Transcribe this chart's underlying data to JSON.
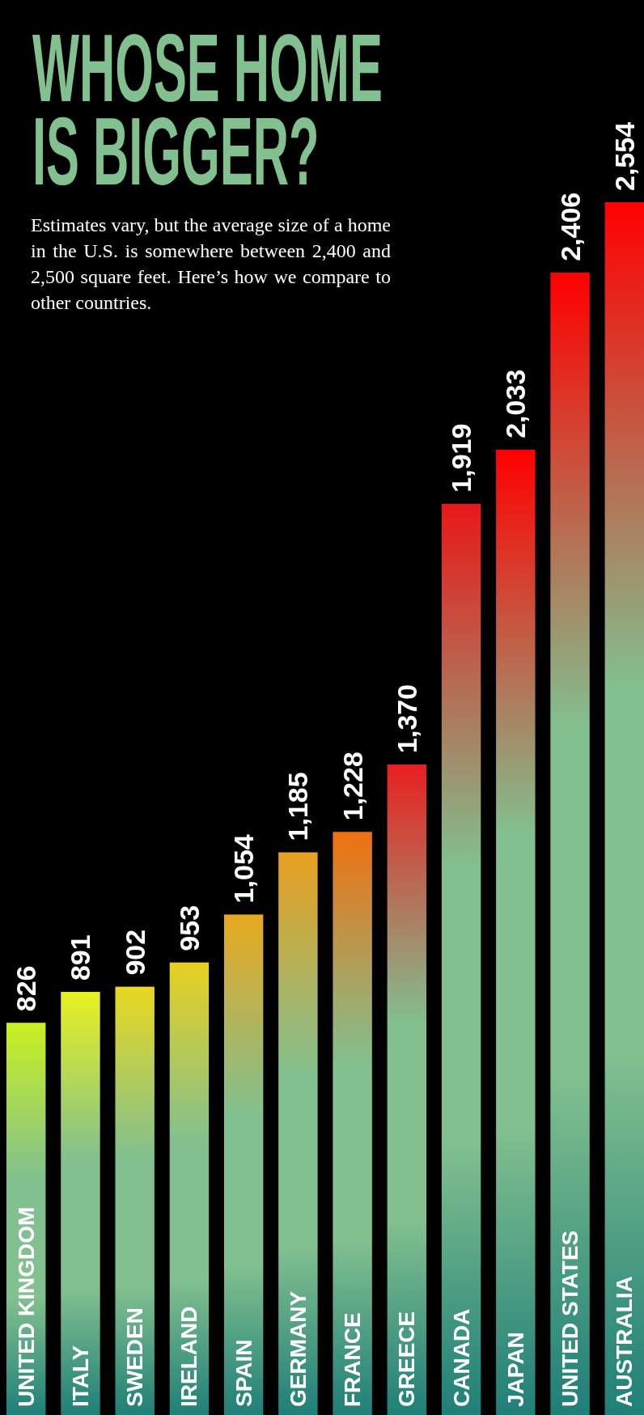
{
  "chart_data": {
    "type": "bar",
    "title": "WHOSE HOME IS BIGGER?",
    "subtitle": "Estimates vary, but the average size of a home in the U.S. is somewhere between 2,400 and 2,500 square feet. Here’s how we compare to other countries.",
    "categories": [
      "UNITED KINGDOM",
      "ITALY",
      "SWEDEN",
      "IRELAND",
      "SPAIN",
      "GERMANY",
      "FRANCE",
      "GREECE",
      "CANADA",
      "JAPAN",
      "UNITED STATES",
      "AUSTRALIA"
    ],
    "values": [
      826,
      891,
      902,
      953,
      1054,
      1185,
      1228,
      1370,
      1919,
      2033,
      2406,
      2554
    ],
    "colors": [
      "#c8f020",
      "#e8f020",
      "#e8d820",
      "#e8d020",
      "#e8a820",
      "#e8a020",
      "#f07010",
      "#e82020",
      "#e81818",
      "#ff0000",
      "#ff0000",
      "#ff0000"
    ],
    "value_labels": [
      "826",
      "891",
      "902",
      "953",
      "1,054",
      "1,185",
      "1,228",
      "1,370",
      "1,919",
      "2,033",
      "2,406",
      "2,554"
    ]
  }
}
